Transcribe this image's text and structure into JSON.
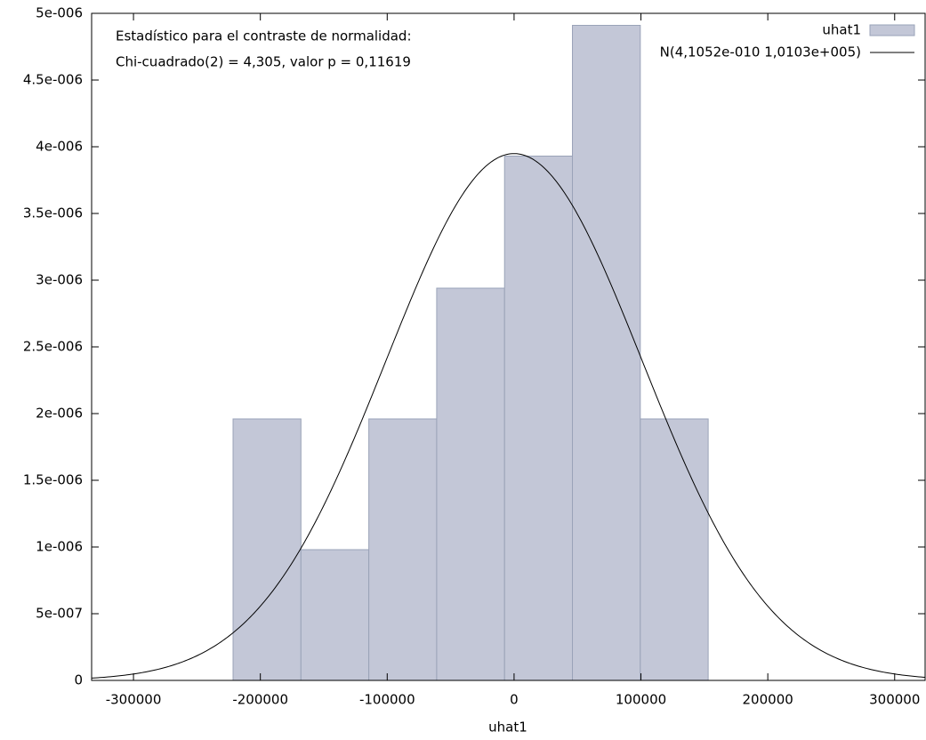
{
  "chart_data": {
    "type": "histogram",
    "x_label": "uhat1",
    "annotations": [
      "Estadístico para el contraste de normalidad:",
      "Chi-cuadrado(2) = 4,305, valor p = 0,11619"
    ],
    "bins": [
      -221500,
      -168000,
      -114500,
      -61000,
      -7500,
      46000,
      99500,
      153000
    ],
    "series": [
      {
        "name": "uhat1",
        "color": "#c3c7d7",
        "values": [
          1.96e-06,
          9.8e-07,
          1.96e-06,
          2.94e-06,
          3.93e-06,
          4.91e-06,
          1.96e-06
        ]
      }
    ],
    "curve": {
      "name": "N(4,1052e-010 1,0103e+005)",
      "color": "#000000",
      "mean": 4.1052e-10,
      "sd": 101030
    },
    "xlim": [
      -333000,
      324000
    ],
    "xticks": [
      -300000,
      -200000,
      -100000,
      0,
      100000,
      200000,
      300000
    ],
    "ylim": [
      0,
      5e-06
    ],
    "yticks": [
      0,
      {
        "value": 5e-07,
        "label": "5e-007"
      },
      {
        "value": 1e-06,
        "label": "1e-006"
      },
      {
        "value": 1.5e-06,
        "label": "1.5e-006"
      },
      {
        "value": 2e-06,
        "label": "2e-006"
      },
      {
        "value": 2.5e-06,
        "label": "2.5e-006"
      },
      {
        "value": 3e-06,
        "label": "3e-006"
      },
      {
        "value": 3.5e-06,
        "label": "3.5e-006"
      },
      {
        "value": 4e-06,
        "label": "4e-006"
      },
      {
        "value": 4.5e-06,
        "label": "4.5e-006"
      },
      {
        "value": 5e-06,
        "label": "5e-006"
      }
    ],
    "legend": "top-right"
  }
}
